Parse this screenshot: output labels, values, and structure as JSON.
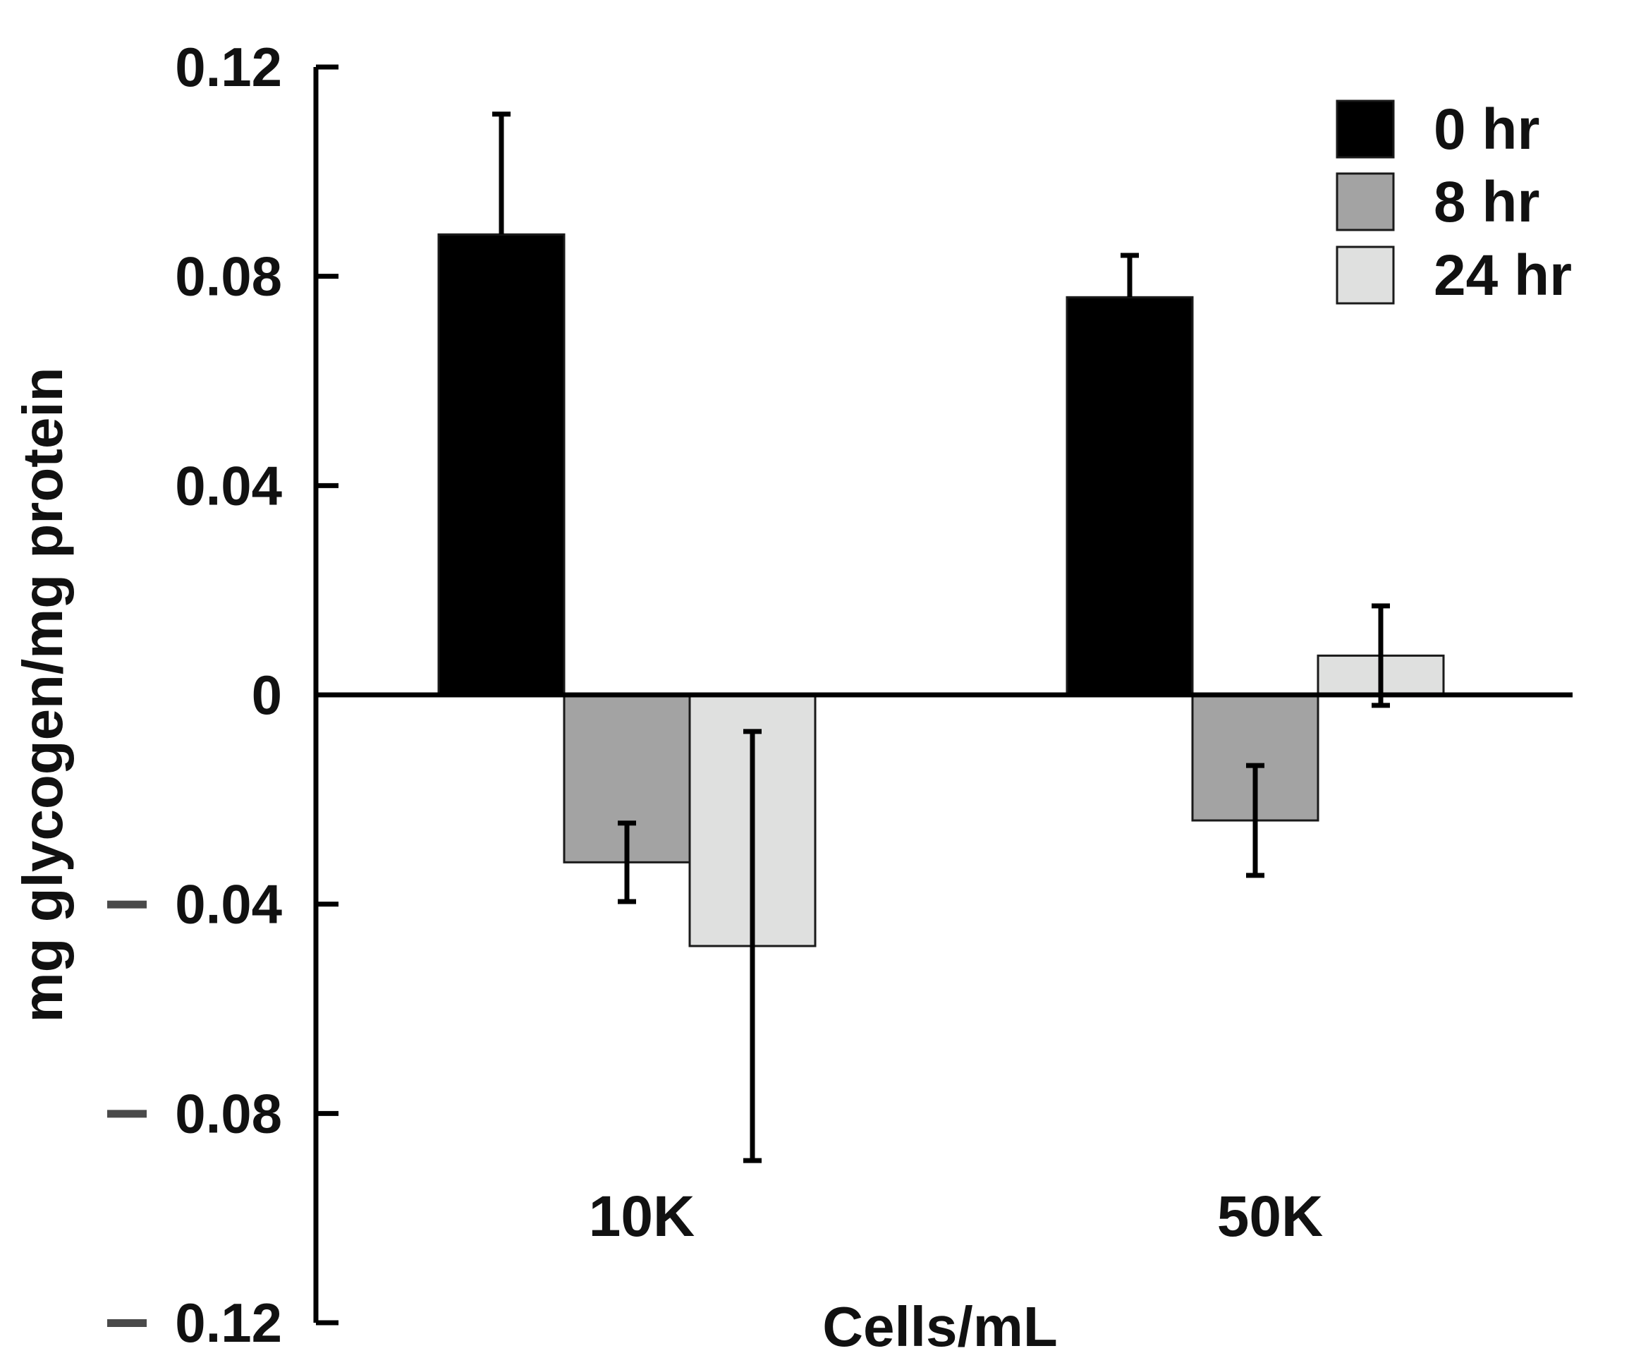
{
  "chart_data": {
    "type": "bar",
    "categories": [
      "10K",
      "50K"
    ],
    "series": [
      {
        "name": "0 hr",
        "color": "#000000",
        "values": [
          0.088,
          0.076
        ],
        "errors": [
          0.023,
          0.008
        ]
      },
      {
        "name": "8 hr",
        "color": "#a3a3a3",
        "values": [
          -0.032,
          -0.024
        ],
        "errors": [
          0.0075,
          0.0105
        ]
      },
      {
        "name": "24 hr",
        "color": "#dfe0df",
        "values": [
          -0.048,
          0.0075
        ],
        "errors": [
          0.041,
          0.0095
        ]
      }
    ],
    "xlabel": "Cells/mL",
    "ylabel": "mg glycogen/mg protein",
    "ylim": [
      -0.12,
      0.12
    ],
    "yticks": [
      {
        "value": 0.12,
        "label": "0.12"
      },
      {
        "value": 0.08,
        "label": "0.08"
      },
      {
        "value": 0.04,
        "label": "0.04"
      },
      {
        "value": 0,
        "label": "0"
      },
      {
        "value": -0.04,
        "label": "0.04"
      },
      {
        "value": -0.08,
        "label": "0.08"
      },
      {
        "value": -0.12,
        "label": "0.12"
      }
    ],
    "negative_sign": "−",
    "legend_position": "top-right",
    "grid": false
  }
}
